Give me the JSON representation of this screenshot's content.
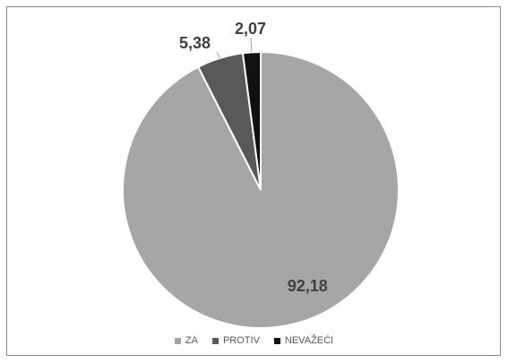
{
  "chart_data": {
    "type": "pie",
    "categories": [
      "ZA",
      "PROTIV",
      "NEVAŽEĆI"
    ],
    "values": [
      92.18,
      5.38,
      2.07
    ],
    "data_labels": [
      "92,18",
      "5,38",
      "2,07"
    ],
    "colors": [
      "#a6a6a6",
      "#595959",
      "#111111"
    ],
    "legend": {
      "position": "bottom"
    },
    "start_angle_deg": 0,
    "direction": "clockwise"
  }
}
